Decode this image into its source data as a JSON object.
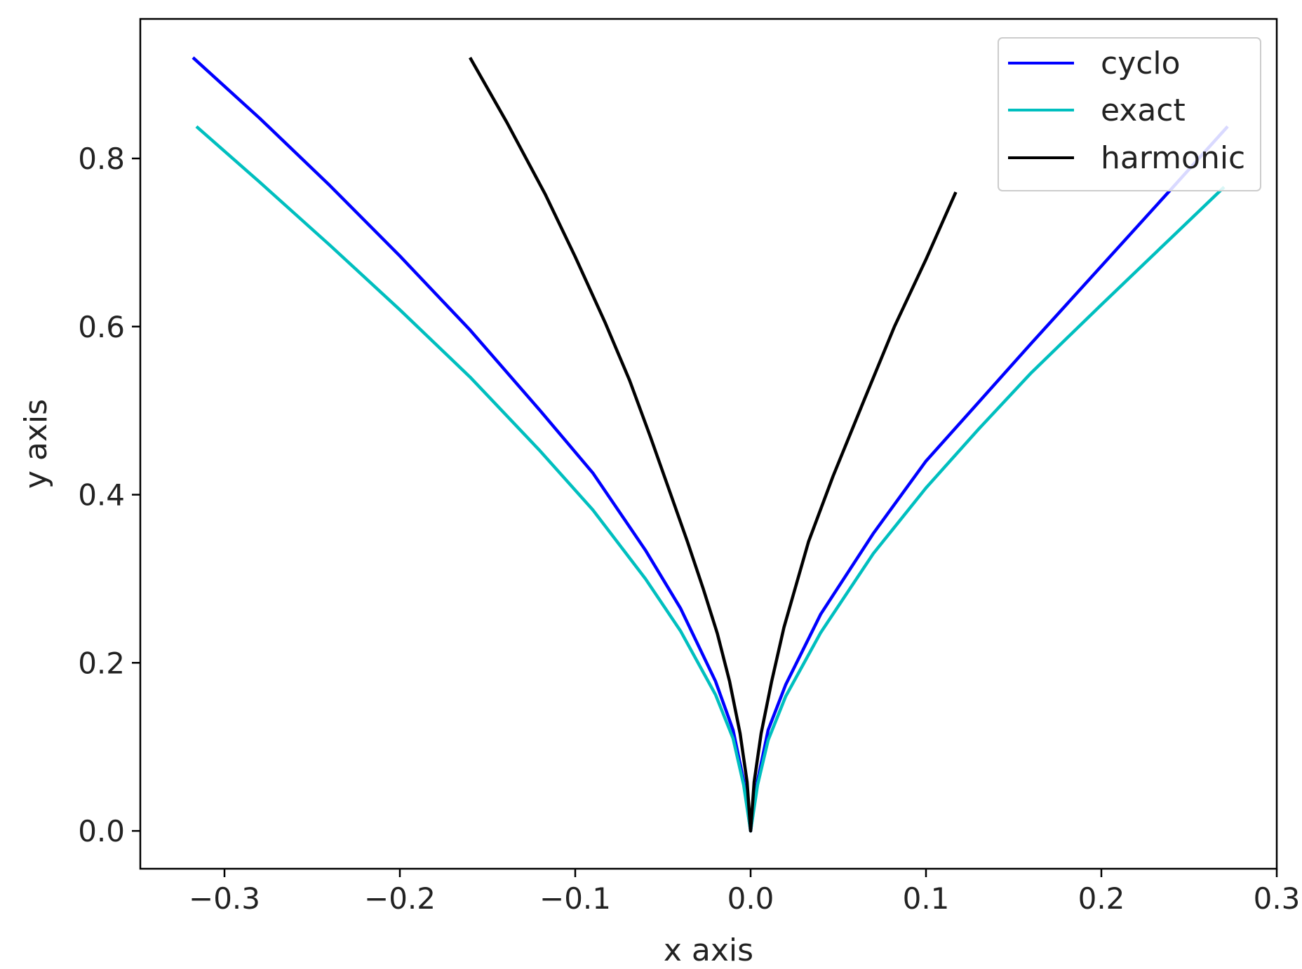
{
  "chart_data": {
    "type": "line",
    "xlabel": "x axis",
    "ylabel": "y axis",
    "xlim": [
      -0.348,
      0.3
    ],
    "ylim": [
      -0.045,
      0.966
    ],
    "xticks": [
      -0.3,
      -0.2,
      -0.1,
      0.0,
      0.1,
      0.2,
      0.3
    ],
    "xtick_labels": [
      "−0.3",
      "−0.2",
      "−0.1",
      "0.0",
      "0.1",
      "0.2",
      "0.3"
    ],
    "yticks": [
      0.0,
      0.2,
      0.4,
      0.6,
      0.8
    ],
    "ytick_labels": [
      "0.0",
      "0.2",
      "0.4",
      "0.6",
      "0.8"
    ],
    "grid": false,
    "legend_position": "top-right",
    "series": [
      {
        "name": "cyclo",
        "color": "#0000ff",
        "points": [
          [
            -0.318,
            0.92
          ],
          [
            -0.28,
            0.848
          ],
          [
            -0.24,
            0.768
          ],
          [
            -0.2,
            0.684
          ],
          [
            -0.16,
            0.596
          ],
          [
            -0.12,
            0.5
          ],
          [
            -0.09,
            0.426
          ],
          [
            -0.06,
            0.334
          ],
          [
            -0.04,
            0.265
          ],
          [
            -0.02,
            0.178
          ],
          [
            -0.01,
            0.12
          ],
          [
            -0.004,
            0.06
          ],
          [
            0.0,
            0.0
          ],
          [
            0.004,
            0.06
          ],
          [
            0.01,
            0.12
          ],
          [
            0.02,
            0.174
          ],
          [
            0.04,
            0.258
          ],
          [
            0.07,
            0.354
          ],
          [
            0.1,
            0.44
          ],
          [
            0.13,
            0.51
          ],
          [
            0.16,
            0.58
          ],
          [
            0.2,
            0.672
          ],
          [
            0.24,
            0.764
          ],
          [
            0.272,
            0.838
          ]
        ]
      },
      {
        "name": "exact",
        "color": "#00bfbf",
        "points": [
          [
            -0.316,
            0.838
          ],
          [
            -0.28,
            0.772
          ],
          [
            -0.24,
            0.697
          ],
          [
            -0.2,
            0.62
          ],
          [
            -0.16,
            0.54
          ],
          [
            -0.12,
            0.452
          ],
          [
            -0.09,
            0.382
          ],
          [
            -0.06,
            0.3
          ],
          [
            -0.04,
            0.238
          ],
          [
            -0.02,
            0.162
          ],
          [
            -0.01,
            0.11
          ],
          [
            -0.004,
            0.055
          ],
          [
            0.0,
            0.0
          ],
          [
            0.004,
            0.055
          ],
          [
            0.01,
            0.108
          ],
          [
            0.02,
            0.16
          ],
          [
            0.04,
            0.236
          ],
          [
            0.07,
            0.33
          ],
          [
            0.1,
            0.408
          ],
          [
            0.13,
            0.478
          ],
          [
            0.16,
            0.545
          ],
          [
            0.2,
            0.626
          ],
          [
            0.24,
            0.706
          ],
          [
            0.27,
            0.766
          ]
        ]
      },
      {
        "name": "harmonic",
        "color": "#000000",
        "points": [
          [
            -0.16,
            0.92
          ],
          [
            -0.139,
            0.843
          ],
          [
            -0.117,
            0.757
          ],
          [
            -0.1,
            0.683
          ],
          [
            -0.083,
            0.605
          ],
          [
            -0.069,
            0.536
          ],
          [
            -0.057,
            0.468
          ],
          [
            -0.046,
            0.403
          ],
          [
            -0.036,
            0.344
          ],
          [
            -0.027,
            0.288
          ],
          [
            -0.019,
            0.235
          ],
          [
            -0.012,
            0.178
          ],
          [
            -0.006,
            0.116
          ],
          [
            -0.002,
            0.058
          ],
          [
            0.0,
            0.0
          ],
          [
            0.002,
            0.058
          ],
          [
            0.006,
            0.116
          ],
          [
            0.012,
            0.178
          ],
          [
            0.019,
            0.242
          ],
          [
            0.033,
            0.344
          ],
          [
            0.047,
            0.422
          ],
          [
            0.065,
            0.514
          ],
          [
            0.082,
            0.6
          ],
          [
            0.1,
            0.68
          ],
          [
            0.117,
            0.76
          ]
        ]
      }
    ]
  }
}
